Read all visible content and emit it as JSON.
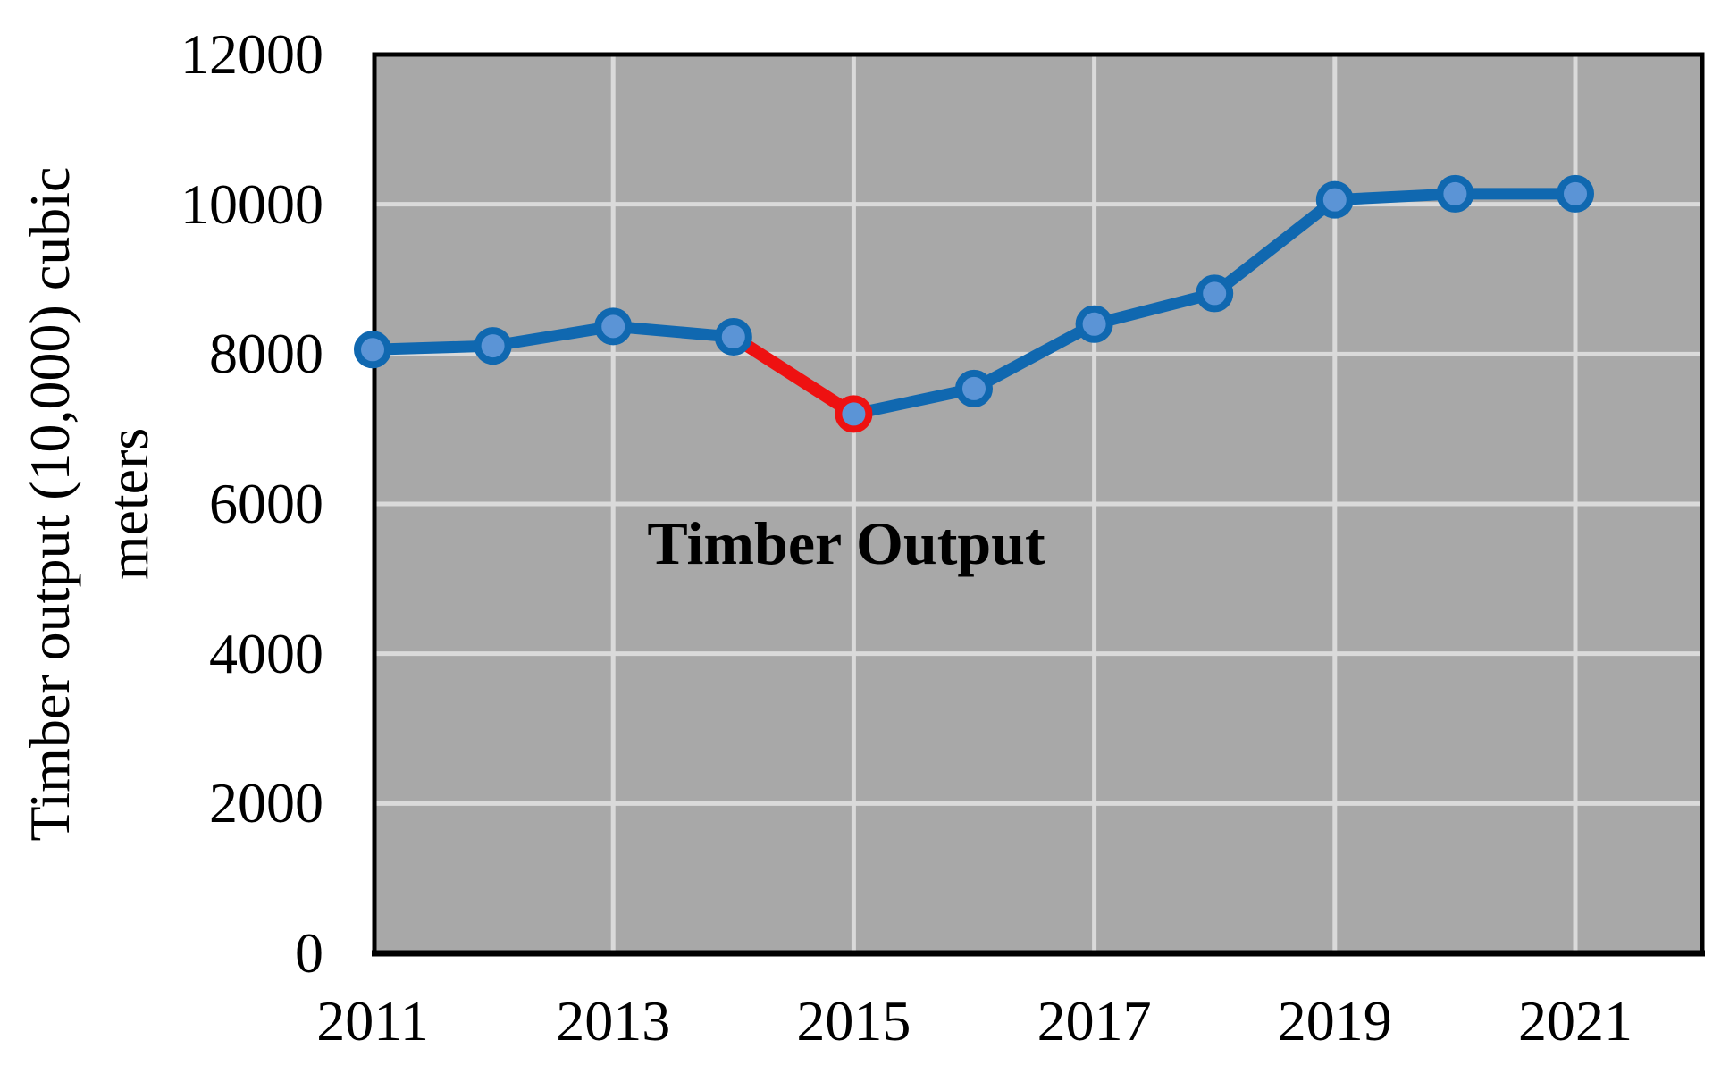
{
  "page": {
    "background": "#ffffff"
  },
  "chart_data": {
    "type": "line",
    "annotation": "Timber Output",
    "ylabel_line1": "Timber output (10,000) cubic",
    "ylabel_line2": "meters",
    "x": [
      2011,
      2012,
      2013,
      2014,
      2015,
      2016,
      2017,
      2018,
      2019,
      2020,
      2021
    ],
    "series": [
      {
        "name": "Timber Output",
        "values": [
          8060,
          8110,
          8370,
          8230,
          7200,
          7540,
          8400,
          8810,
          10060,
          10140,
          10140
        ]
      }
    ],
    "ylim": [
      0,
      12000
    ],
    "yticks": [
      0,
      2000,
      4000,
      6000,
      8000,
      10000,
      12000
    ],
    "xticks": [
      2011,
      2013,
      2015,
      2017,
      2019,
      2021
    ],
    "grid": true,
    "legend": "none",
    "highlight": {
      "segment": [
        2014,
        2015
      ],
      "point": 2015
    },
    "colors": {
      "line": "#1068b0",
      "marker_fill": "#5b94d6",
      "highlight": "#ee1111",
      "plot_bg": "#a8a8a8",
      "gridline": "#dadada",
      "axis": "#000000",
      "text": "#000000"
    }
  }
}
